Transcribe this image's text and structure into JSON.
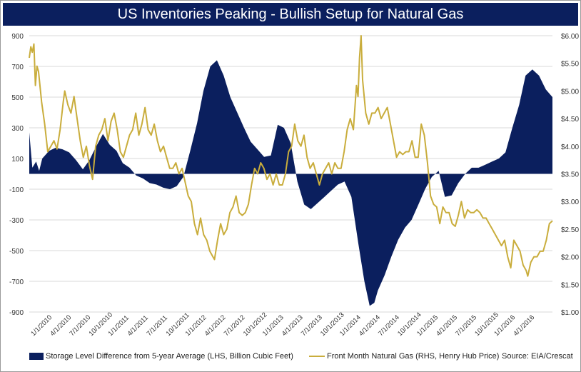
{
  "chart_data": {
    "type": "area+line",
    "title": "US Inventories Peaking - Bullish Setup for Natural Gas",
    "source": "Source: EIA/Crescat",
    "colors": {
      "title_bg": "#0b1f5e",
      "storage": "#0b1f5e",
      "gas": "#c9ad3c"
    },
    "x_tick_labels": [
      "1/1/2010",
      "4/1/2010",
      "7/1/2010",
      "10/1/2010",
      "1/1/2011",
      "4/1/2011",
      "7/1/2011",
      "10/1/2011",
      "1/1/2012",
      "4/1/2012",
      "7/1/2012",
      "10/1/2012",
      "1/1/2013",
      "4/1/2013",
      "7/1/2013",
      "10/1/2013",
      "1/1/2014",
      "4/1/2014",
      "7/1/2014",
      "10/1/2014",
      "1/1/2015",
      "4/1/2015",
      "7/1/2015",
      "10/1/2015",
      "1/1/2016",
      "4/1/2016"
    ],
    "x_range": [
      "2010-01-01",
      "2016-07-01"
    ],
    "y_left": {
      "ylim": [
        -900,
        900
      ],
      "ticks": [
        "900",
        "700",
        "500",
        "300",
        "100",
        "-100",
        "-300",
        "-500",
        "-700",
        "-900"
      ]
    },
    "y_right": {
      "ylim": [
        1.0,
        6.0
      ],
      "ticks": [
        "$6.00",
        "$5.50",
        "$5.00",
        "$4.50",
        "$4.00",
        "$3.50",
        "$3.00",
        "$2.50",
        "$2.00",
        "$1.50",
        "$1.00"
      ]
    },
    "grid": "horizontal",
    "legend_position": "bottom",
    "series": [
      {
        "name": "Storage Level Difference from 5-year Average (LHS, Billion Cubic Feet)",
        "axis": "left",
        "kind": "area",
        "points": [
          [
            "2010-01-01",
            270
          ],
          [
            "2010-01-15",
            40
          ],
          [
            "2010-02-01",
            80
          ],
          [
            "2010-02-15",
            20
          ],
          [
            "2010-03-01",
            100
          ],
          [
            "2010-04-01",
            150
          ],
          [
            "2010-05-01",
            170
          ],
          [
            "2010-06-01",
            160
          ],
          [
            "2010-07-01",
            140
          ],
          [
            "2010-08-01",
            90
          ],
          [
            "2010-09-01",
            30
          ],
          [
            "2010-10-01",
            90
          ],
          [
            "2010-11-01",
            180
          ],
          [
            "2010-12-01",
            260
          ],
          [
            "2011-01-01",
            190
          ],
          [
            "2011-02-01",
            150
          ],
          [
            "2011-03-01",
            70
          ],
          [
            "2011-04-01",
            40
          ],
          [
            "2011-05-01",
            -10
          ],
          [
            "2011-06-01",
            -30
          ],
          [
            "2011-07-01",
            -60
          ],
          [
            "2011-08-01",
            -70
          ],
          [
            "2011-09-01",
            -90
          ],
          [
            "2011-10-01",
            -100
          ],
          [
            "2011-11-01",
            -80
          ],
          [
            "2011-12-01",
            -20
          ],
          [
            "2012-01-01",
            150
          ],
          [
            "2012-02-01",
            330
          ],
          [
            "2012-03-01",
            540
          ],
          [
            "2012-04-01",
            700
          ],
          [
            "2012-05-01",
            740
          ],
          [
            "2012-06-01",
            640
          ],
          [
            "2012-07-01",
            500
          ],
          [
            "2012-08-01",
            400
          ],
          [
            "2012-09-01",
            300
          ],
          [
            "2012-10-01",
            210
          ],
          [
            "2012-11-01",
            160
          ],
          [
            "2012-12-01",
            110
          ],
          [
            "2013-01-01",
            120
          ],
          [
            "2013-02-01",
            320
          ],
          [
            "2013-03-01",
            300
          ],
          [
            "2013-04-01",
            200
          ],
          [
            "2013-05-01",
            -50
          ],
          [
            "2013-06-01",
            -200
          ],
          [
            "2013-07-01",
            -230
          ],
          [
            "2013-08-01",
            -190
          ],
          [
            "2013-09-01",
            -150
          ],
          [
            "2013-10-01",
            -110
          ],
          [
            "2013-11-01",
            -70
          ],
          [
            "2013-12-01",
            -50
          ],
          [
            "2014-01-01",
            -150
          ],
          [
            "2014-02-01",
            -450
          ],
          [
            "2014-03-01",
            -700
          ],
          [
            "2014-03-25",
            -860
          ],
          [
            "2014-04-15",
            -840
          ],
          [
            "2014-05-01",
            -760
          ],
          [
            "2014-06-01",
            -660
          ],
          [
            "2014-07-01",
            -540
          ],
          [
            "2014-08-01",
            -430
          ],
          [
            "2014-09-01",
            -350
          ],
          [
            "2014-10-01",
            -300
          ],
          [
            "2014-11-01",
            -200
          ],
          [
            "2014-12-01",
            -100
          ],
          [
            "2015-01-01",
            -20
          ],
          [
            "2015-02-01",
            20
          ],
          [
            "2015-03-01",
            -150
          ],
          [
            "2015-04-01",
            -140
          ],
          [
            "2015-05-01",
            -60
          ],
          [
            "2015-06-01",
            0
          ],
          [
            "2015-07-01",
            40
          ],
          [
            "2015-08-01",
            40
          ],
          [
            "2015-09-01",
            60
          ],
          [
            "2015-10-01",
            80
          ],
          [
            "2015-11-01",
            100
          ],
          [
            "2015-12-01",
            140
          ],
          [
            "2016-01-01",
            300
          ],
          [
            "2016-02-01",
            450
          ],
          [
            "2016-03-01",
            640
          ],
          [
            "2016-04-01",
            680
          ],
          [
            "2016-05-01",
            640
          ],
          [
            "2016-06-01",
            550
          ],
          [
            "2016-07-01",
            500
          ]
        ]
      },
      {
        "name": "Front Month Natural Gas (RHS, Henry Hub Price)",
        "axis": "right",
        "kind": "line",
        "points": [
          [
            "2010-01-01",
            5.6
          ],
          [
            "2010-01-08",
            5.8
          ],
          [
            "2010-01-15",
            5.7
          ],
          [
            "2010-01-22",
            5.85
          ],
          [
            "2010-01-29",
            5.1
          ],
          [
            "2010-02-05",
            5.45
          ],
          [
            "2010-02-12",
            5.35
          ],
          [
            "2010-02-26",
            4.8
          ],
          [
            "2010-03-12",
            4.4
          ],
          [
            "2010-03-26",
            3.9
          ],
          [
            "2010-04-09",
            4.0
          ],
          [
            "2010-04-23",
            4.1
          ],
          [
            "2010-05-07",
            3.95
          ],
          [
            "2010-05-21",
            4.3
          ],
          [
            "2010-06-04",
            4.8
          ],
          [
            "2010-06-11",
            5.0
          ],
          [
            "2010-06-25",
            4.75
          ],
          [
            "2010-07-09",
            4.6
          ],
          [
            "2010-07-23",
            4.9
          ],
          [
            "2010-08-06",
            4.5
          ],
          [
            "2010-08-20",
            4.1
          ],
          [
            "2010-09-03",
            3.8
          ],
          [
            "2010-09-17",
            4.0
          ],
          [
            "2010-10-01",
            3.65
          ],
          [
            "2010-10-15",
            3.4
          ],
          [
            "2010-10-29",
            4.0
          ],
          [
            "2010-11-12",
            4.2
          ],
          [
            "2010-11-26",
            4.3
          ],
          [
            "2010-12-10",
            4.5
          ],
          [
            "2010-12-24",
            4.1
          ],
          [
            "2011-01-07",
            4.45
          ],
          [
            "2011-01-21",
            4.6
          ],
          [
            "2011-02-04",
            4.3
          ],
          [
            "2011-02-18",
            3.9
          ],
          [
            "2011-03-04",
            3.8
          ],
          [
            "2011-03-18",
            4.0
          ],
          [
            "2011-04-01",
            4.2
          ],
          [
            "2011-04-15",
            4.3
          ],
          [
            "2011-04-29",
            4.6
          ],
          [
            "2011-05-13",
            4.2
          ],
          [
            "2011-05-27",
            4.4
          ],
          [
            "2011-06-10",
            4.7
          ],
          [
            "2011-06-24",
            4.3
          ],
          [
            "2011-07-08",
            4.2
          ],
          [
            "2011-07-22",
            4.4
          ],
          [
            "2011-08-05",
            4.1
          ],
          [
            "2011-08-19",
            3.9
          ],
          [
            "2011-09-02",
            4.0
          ],
          [
            "2011-09-16",
            3.8
          ],
          [
            "2011-09-30",
            3.6
          ],
          [
            "2011-10-14",
            3.6
          ],
          [
            "2011-10-28",
            3.7
          ],
          [
            "2011-11-11",
            3.5
          ],
          [
            "2011-11-25",
            3.6
          ],
          [
            "2011-12-09",
            3.35
          ],
          [
            "2011-12-23",
            3.1
          ],
          [
            "2012-01-06",
            3.0
          ],
          [
            "2012-01-20",
            2.6
          ],
          [
            "2012-02-03",
            2.4
          ],
          [
            "2012-02-17",
            2.7
          ],
          [
            "2012-03-02",
            2.4
          ],
          [
            "2012-03-16",
            2.3
          ],
          [
            "2012-03-30",
            2.1
          ],
          [
            "2012-04-13",
            2.0
          ],
          [
            "2012-04-20",
            1.95
          ],
          [
            "2012-05-04",
            2.3
          ],
          [
            "2012-05-18",
            2.6
          ],
          [
            "2012-06-01",
            2.4
          ],
          [
            "2012-06-15",
            2.5
          ],
          [
            "2012-06-29",
            2.8
          ],
          [
            "2012-07-13",
            2.9
          ],
          [
            "2012-07-27",
            3.1
          ],
          [
            "2012-08-10",
            2.8
          ],
          [
            "2012-08-24",
            2.75
          ],
          [
            "2012-09-07",
            2.8
          ],
          [
            "2012-09-21",
            2.95
          ],
          [
            "2012-10-05",
            3.3
          ],
          [
            "2012-10-19",
            3.6
          ],
          [
            "2012-11-02",
            3.5
          ],
          [
            "2012-11-16",
            3.7
          ],
          [
            "2012-11-30",
            3.6
          ],
          [
            "2012-12-14",
            3.4
          ],
          [
            "2012-12-28",
            3.5
          ],
          [
            "2013-01-11",
            3.3
          ],
          [
            "2013-01-25",
            3.5
          ],
          [
            "2013-02-08",
            3.3
          ],
          [
            "2013-02-22",
            3.3
          ],
          [
            "2013-03-08",
            3.5
          ],
          [
            "2013-03-22",
            3.9
          ],
          [
            "2013-04-05",
            4.0
          ],
          [
            "2013-04-19",
            4.4
          ],
          [
            "2013-05-03",
            4.1
          ],
          [
            "2013-05-17",
            4.0
          ],
          [
            "2013-05-31",
            4.2
          ],
          [
            "2013-06-14",
            3.8
          ],
          [
            "2013-06-28",
            3.6
          ],
          [
            "2013-07-12",
            3.7
          ],
          [
            "2013-07-26",
            3.5
          ],
          [
            "2013-08-09",
            3.3
          ],
          [
            "2013-08-23",
            3.5
          ],
          [
            "2013-09-06",
            3.6
          ],
          [
            "2013-09-20",
            3.7
          ],
          [
            "2013-10-04",
            3.5
          ],
          [
            "2013-10-18",
            3.7
          ],
          [
            "2013-11-01",
            3.6
          ],
          [
            "2013-11-15",
            3.6
          ],
          [
            "2013-11-29",
            3.9
          ],
          [
            "2013-12-13",
            4.3
          ],
          [
            "2013-12-27",
            4.5
          ],
          [
            "2014-01-10",
            4.3
          ],
          [
            "2014-01-24",
            5.1
          ],
          [
            "2014-01-31",
            4.9
          ],
          [
            "2014-02-07",
            5.6
          ],
          [
            "2014-02-14",
            6.0
          ],
          [
            "2014-02-21",
            5.2
          ],
          [
            "2014-03-07",
            4.6
          ],
          [
            "2014-03-21",
            4.4
          ],
          [
            "2014-04-04",
            4.6
          ],
          [
            "2014-04-18",
            4.6
          ],
          [
            "2014-05-02",
            4.7
          ],
          [
            "2014-05-16",
            4.5
          ],
          [
            "2014-05-30",
            4.6
          ],
          [
            "2014-06-13",
            4.7
          ],
          [
            "2014-06-27",
            4.4
          ],
          [
            "2014-07-11",
            4.1
          ],
          [
            "2014-07-25",
            3.8
          ],
          [
            "2014-08-08",
            3.9
          ],
          [
            "2014-08-22",
            3.85
          ],
          [
            "2014-09-05",
            3.9
          ],
          [
            "2014-09-19",
            3.9
          ],
          [
            "2014-10-03",
            4.1
          ],
          [
            "2014-10-17",
            3.8
          ],
          [
            "2014-10-31",
            3.8
          ],
          [
            "2014-11-14",
            4.4
          ],
          [
            "2014-11-28",
            4.2
          ],
          [
            "2014-12-12",
            3.7
          ],
          [
            "2014-12-26",
            3.1
          ],
          [
            "2015-01-09",
            2.95
          ],
          [
            "2015-01-23",
            2.9
          ],
          [
            "2015-02-06",
            2.6
          ],
          [
            "2015-02-20",
            2.9
          ],
          [
            "2015-03-06",
            2.8
          ],
          [
            "2015-03-20",
            2.8
          ],
          [
            "2015-04-03",
            2.6
          ],
          [
            "2015-04-17",
            2.55
          ],
          [
            "2015-05-01",
            2.75
          ],
          [
            "2015-05-15",
            3.0
          ],
          [
            "2015-05-29",
            2.7
          ],
          [
            "2015-06-12",
            2.85
          ],
          [
            "2015-06-26",
            2.8
          ],
          [
            "2015-07-10",
            2.8
          ],
          [
            "2015-07-24",
            2.85
          ],
          [
            "2015-08-07",
            2.8
          ],
          [
            "2015-08-21",
            2.7
          ],
          [
            "2015-09-04",
            2.7
          ],
          [
            "2015-09-18",
            2.6
          ],
          [
            "2015-10-02",
            2.5
          ],
          [
            "2015-10-16",
            2.4
          ],
          [
            "2015-10-30",
            2.3
          ],
          [
            "2015-11-13",
            2.2
          ],
          [
            "2015-11-27",
            2.3
          ],
          [
            "2015-12-11",
            2.0
          ],
          [
            "2015-12-25",
            1.8
          ],
          [
            "2016-01-08",
            2.3
          ],
          [
            "2016-01-22",
            2.2
          ],
          [
            "2016-02-05",
            2.1
          ],
          [
            "2016-02-19",
            1.85
          ],
          [
            "2016-03-04",
            1.75
          ],
          [
            "2016-03-11",
            1.65
          ],
          [
            "2016-03-25",
            1.9
          ],
          [
            "2016-04-08",
            2.0
          ],
          [
            "2016-04-22",
            2.0
          ],
          [
            "2016-05-06",
            2.1
          ],
          [
            "2016-05-20",
            2.1
          ],
          [
            "2016-06-03",
            2.3
          ],
          [
            "2016-06-17",
            2.6
          ],
          [
            "2016-07-01",
            2.65
          ]
        ]
      }
    ]
  }
}
